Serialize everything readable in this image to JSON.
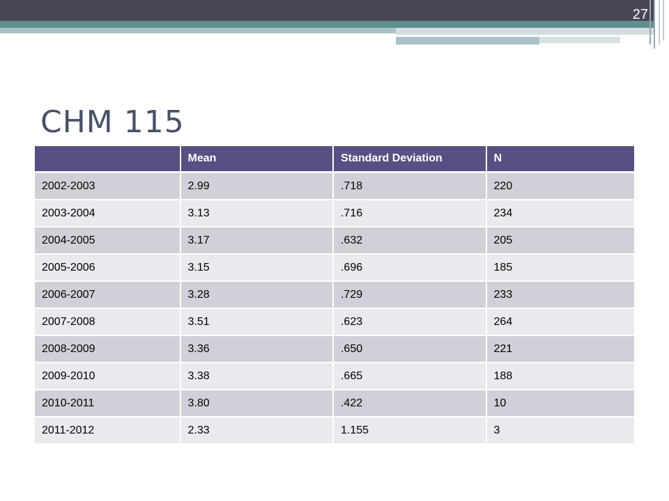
{
  "slide": {
    "page_number": "27",
    "title": "CHM 115"
  },
  "table": {
    "headers": [
      "",
      "Mean",
      "Standard Deviation",
      "N"
    ],
    "rows": [
      [
        "2002-2003",
        "2.99",
        ".718",
        "220"
      ],
      [
        "2003-2004",
        "3.13",
        ".716",
        "234"
      ],
      [
        "2004-2005",
        "3.17",
        ".632",
        "205"
      ],
      [
        "2005-2006",
        "3.15",
        ".696",
        "185"
      ],
      [
        "2006-2007",
        "3.28",
        ".729",
        "233"
      ],
      [
        "2007-2008",
        "3.51",
        ".623",
        "264"
      ],
      [
        "2008-2009",
        "3.36",
        ".650",
        "221"
      ],
      [
        "2009-2010",
        "3.38",
        ".665",
        "188"
      ],
      [
        "2010-2011",
        "3.80",
        ".422",
        "10"
      ],
      [
        "2011-2012",
        "2.33",
        "1.155",
        "3"
      ]
    ]
  },
  "colors": {
    "header_bg": "#575082",
    "row_odd": "#d1d0d8",
    "row_even": "#e9e9ee",
    "banner_dark": "#464655",
    "banner_teal": "#5f8f8f",
    "title_color": "#475266"
  }
}
